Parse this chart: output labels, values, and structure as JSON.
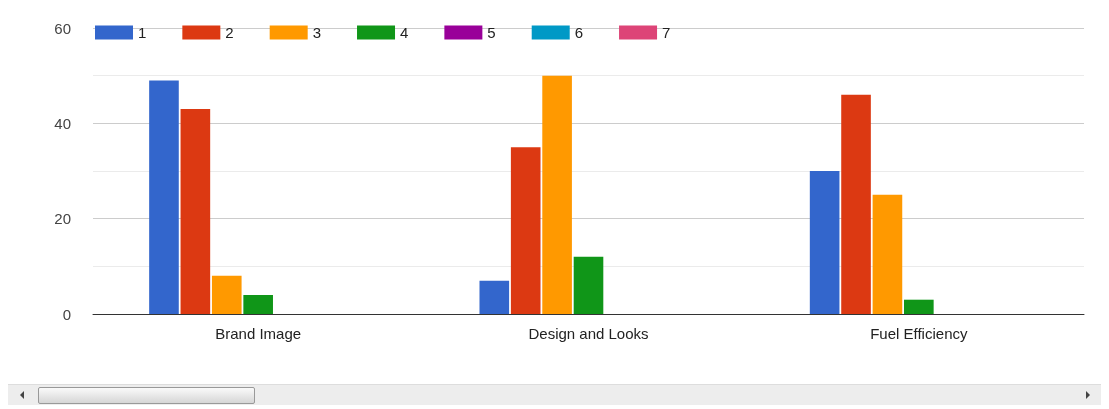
{
  "chart_data": {
    "type": "bar",
    "categories": [
      "Brand Image",
      "Design and Looks",
      "Fuel Efficiency"
    ],
    "series": [
      {
        "name": "1",
        "color": "#3366cc",
        "values": [
          49,
          7,
          30
        ]
      },
      {
        "name": "2",
        "color": "#dc3912",
        "values": [
          43,
          35,
          46
        ]
      },
      {
        "name": "3",
        "color": "#ff9900",
        "values": [
          8,
          50,
          25
        ]
      },
      {
        "name": "4",
        "color": "#109618",
        "values": [
          4,
          12,
          3
        ]
      },
      {
        "name": "5",
        "color": "#990099",
        "values": [
          0,
          0,
          0
        ]
      },
      {
        "name": "6",
        "color": "#0099c6",
        "values": [
          0,
          0,
          0
        ]
      },
      {
        "name": "7",
        "color": "#dd4477",
        "values": [
          0,
          0,
          0
        ]
      }
    ],
    "ylim": [
      0,
      60
    ],
    "yticks": [
      0,
      {
        "value": 10,
        "label": null
      },
      20,
      {
        "value": 30,
        "label": null
      },
      40,
      {
        "value": 50,
        "label": null
      },
      60
    ],
    "grid": true,
    "legend": "top left"
  }
}
